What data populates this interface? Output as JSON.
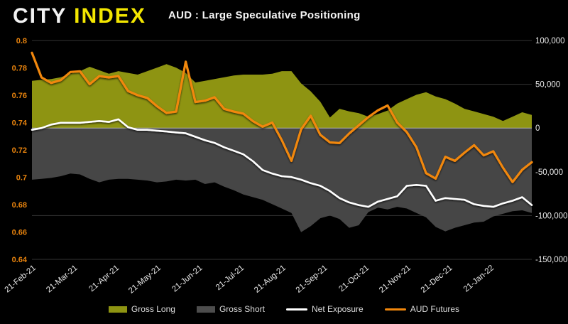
{
  "header": {
    "logo_city": "CITY",
    "logo_index": "INDEX"
  },
  "chart_data": {
    "type": "area+line combo (weekly futures positioning)",
    "title": "AUD : Large Speculative Positioning",
    "grid": "horizontal gridlines at right-axis ticks, zero line highlighted",
    "legend_position": "bottom center",
    "left_axis": {
      "side": "left",
      "min": 0.64,
      "max": 0.8,
      "tick_labels": [
        "0.8",
        "0.78",
        "0.76",
        "0.74",
        "0.72",
        "0.7",
        "0.68",
        "0.66",
        "0.64"
      ],
      "tick_values": [
        0.8,
        0.78,
        0.76,
        0.74,
        0.72,
        0.7,
        0.68,
        0.66,
        0.64
      ],
      "label_color": "#e8830d"
    },
    "right_axis": {
      "side": "right",
      "min": -150000,
      "max": 100000,
      "tick_labels": [
        "100,000",
        "50,000",
        "0",
        "-50,000",
        "-100,000",
        "-150,000"
      ],
      "tick_values": [
        100000,
        50000,
        0,
        -50000,
        -100000,
        -150000
      ],
      "label_color": "#e9e9e9"
    },
    "x_axis": {
      "tick_labels": [
        "21-Feb-21",
        "21-Mar-21",
        "21-Apr-21",
        "21-May-21",
        "21-Jun-21",
        "21-Jul-21",
        "21-Aug-21",
        "21-Sep-21",
        "21-Oct-21",
        "21-Nov-21",
        "21-Dec-21",
        "21-Jan-22"
      ],
      "label_color": "#e9e9e9",
      "label_rotation_deg": -40
    },
    "series": [
      {
        "name": "Gross Long",
        "type": "area",
        "axis": "right",
        "color": "#8e9412",
        "values": [
          54000,
          55000,
          56000,
          58000,
          62000,
          65000,
          70000,
          66000,
          62000,
          65000,
          63000,
          61000,
          65000,
          69000,
          73000,
          69000,
          63000,
          52000,
          54000,
          56000,
          58000,
          60000,
          61000,
          61000,
          61000,
          62000,
          65000,
          65000,
          51000,
          42000,
          30000,
          12000,
          22000,
          19000,
          17000,
          13000,
          16000,
          20000,
          28000,
          33000,
          38000,
          41000,
          36000,
          33000,
          28000,
          22000,
          19000,
          16000,
          13000,
          8000,
          13000,
          18000,
          15000
        ]
      },
      {
        "name": "Gross Short",
        "type": "area",
        "axis": "right",
        "color": "#464646",
        "values": [
          -59000,
          -58000,
          -57000,
          -55000,
          -52000,
          -53000,
          -58000,
          -62000,
          -59000,
          -58000,
          -58000,
          -59000,
          -60000,
          -62000,
          -61000,
          -59000,
          -60000,
          -59000,
          -64000,
          -62000,
          -67000,
          -71000,
          -76000,
          -79000,
          -82000,
          -87000,
          -92000,
          -97000,
          -119000,
          -112000,
          -103000,
          -100000,
          -104000,
          -114000,
          -111000,
          -96000,
          -91000,
          -93000,
          -90000,
          -92000,
          -97000,
          -102000,
          -113000,
          -118000,
          -114000,
          -111000,
          -108000,
          -107000,
          -101000,
          -98000,
          -95000,
          -94000,
          -97000
        ]
      },
      {
        "name": "Net Exposure",
        "type": "line",
        "axis": "right",
        "color": "#ffffff",
        "values": [
          -2000,
          0,
          4000,
          6000,
          6000,
          6000,
          7000,
          8000,
          7000,
          10000,
          1000,
          -2000,
          -2000,
          -3000,
          -4000,
          -5000,
          -6000,
          -10000,
          -14000,
          -17000,
          -22000,
          -26000,
          -30000,
          -38000,
          -48000,
          -52000,
          -55000,
          -56000,
          -59000,
          -63000,
          -66000,
          -72000,
          -80000,
          -85000,
          -88000,
          -90000,
          -84000,
          -81000,
          -78000,
          -66000,
          -65000,
          -66000,
          -83000,
          -80000,
          -81000,
          -82000,
          -87000,
          -89000,
          -90000,
          -86000,
          -83000,
          -79000,
          -88000
        ]
      },
      {
        "name": "AUD Futures",
        "type": "line",
        "axis": "left",
        "color": "#f1870c",
        "values": [
          0.791,
          0.773,
          0.769,
          0.771,
          0.777,
          0.7775,
          0.768,
          0.774,
          0.773,
          0.774,
          0.763,
          0.76,
          0.758,
          0.752,
          0.747,
          0.748,
          0.7845,
          0.755,
          0.756,
          0.7585,
          0.75,
          0.748,
          0.7465,
          0.741,
          0.737,
          0.74,
          0.727,
          0.712,
          0.735,
          0.745,
          0.731,
          0.7255,
          0.725,
          0.732,
          0.738,
          0.744,
          0.749,
          0.7525,
          0.74,
          0.733,
          0.722,
          0.703,
          0.699,
          0.715,
          0.712,
          0.718,
          0.7235,
          0.716,
          0.719,
          0.707,
          0.6965,
          0.7055,
          0.711
        ]
      }
    ]
  },
  "legend": [
    {
      "label": "Gross Long",
      "swatch": "area",
      "color": "#8e9412"
    },
    {
      "label": "Gross Short",
      "swatch": "area",
      "color": "#4d4d4d"
    },
    {
      "label": "Net Exposure",
      "swatch": "line",
      "color": "#ffffff"
    },
    {
      "label": "AUD Futures",
      "swatch": "line",
      "color": "#f1870c"
    }
  ]
}
